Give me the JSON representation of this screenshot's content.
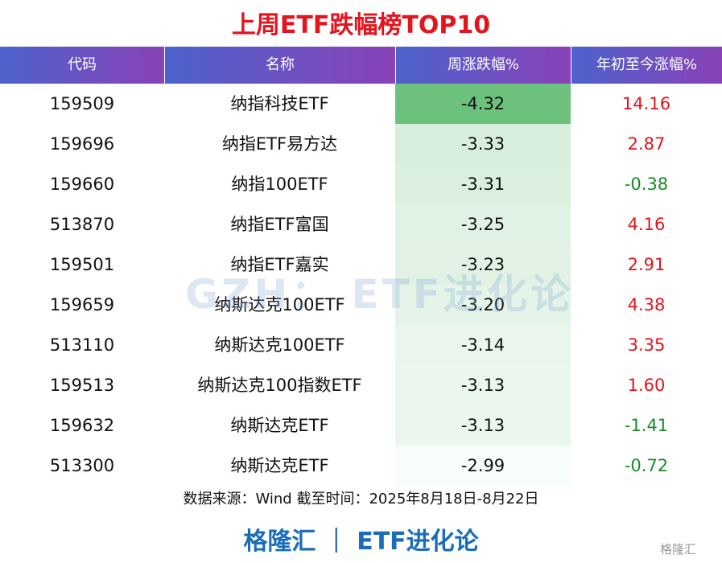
{
  "header": {
    "title": "上周ETF跌幅榜TOP10"
  },
  "table": {
    "columns": [
      "代码",
      "名称",
      "周涨跌幅%",
      "年初至今涨幅%"
    ],
    "rows": [
      [
        "159509",
        "纳指科技ETF",
        "-4.32",
        "14.16"
      ],
      [
        "159696",
        "纳指ETF易方达",
        "-3.33",
        "2.87"
      ],
      [
        "159660",
        "纳指100ETF",
        "-3.31",
        "-0.38"
      ],
      [
        "513870",
        "纳指ETF富国",
        "-3.25",
        "4.16"
      ],
      [
        "159501",
        "纳指ETF嘉实",
        "-3.23",
        "2.91"
      ],
      [
        "159659",
        "纳斯达克100ETF",
        "-3.20",
        "4.38"
      ],
      [
        "513110",
        "纳斯达克100ETF",
        "-3.14",
        "3.35"
      ],
      [
        "159513",
        "纳斯达克100指数ETF",
        "-3.13",
        "1.60"
      ],
      [
        "159632",
        "纳斯达克ETF",
        "-3.13",
        "-1.41"
      ],
      [
        "513300",
        "纳斯达克ETF",
        "-2.99",
        "-0.72"
      ]
    ]
  },
  "source": "数据来源：Wind 截至时间：2025年8月18日-8月22日",
  "footer": "格隆汇 ｜ ETF进化论",
  "watermark": "GZH： ETF进化论",
  "logo": "格隆汇"
}
